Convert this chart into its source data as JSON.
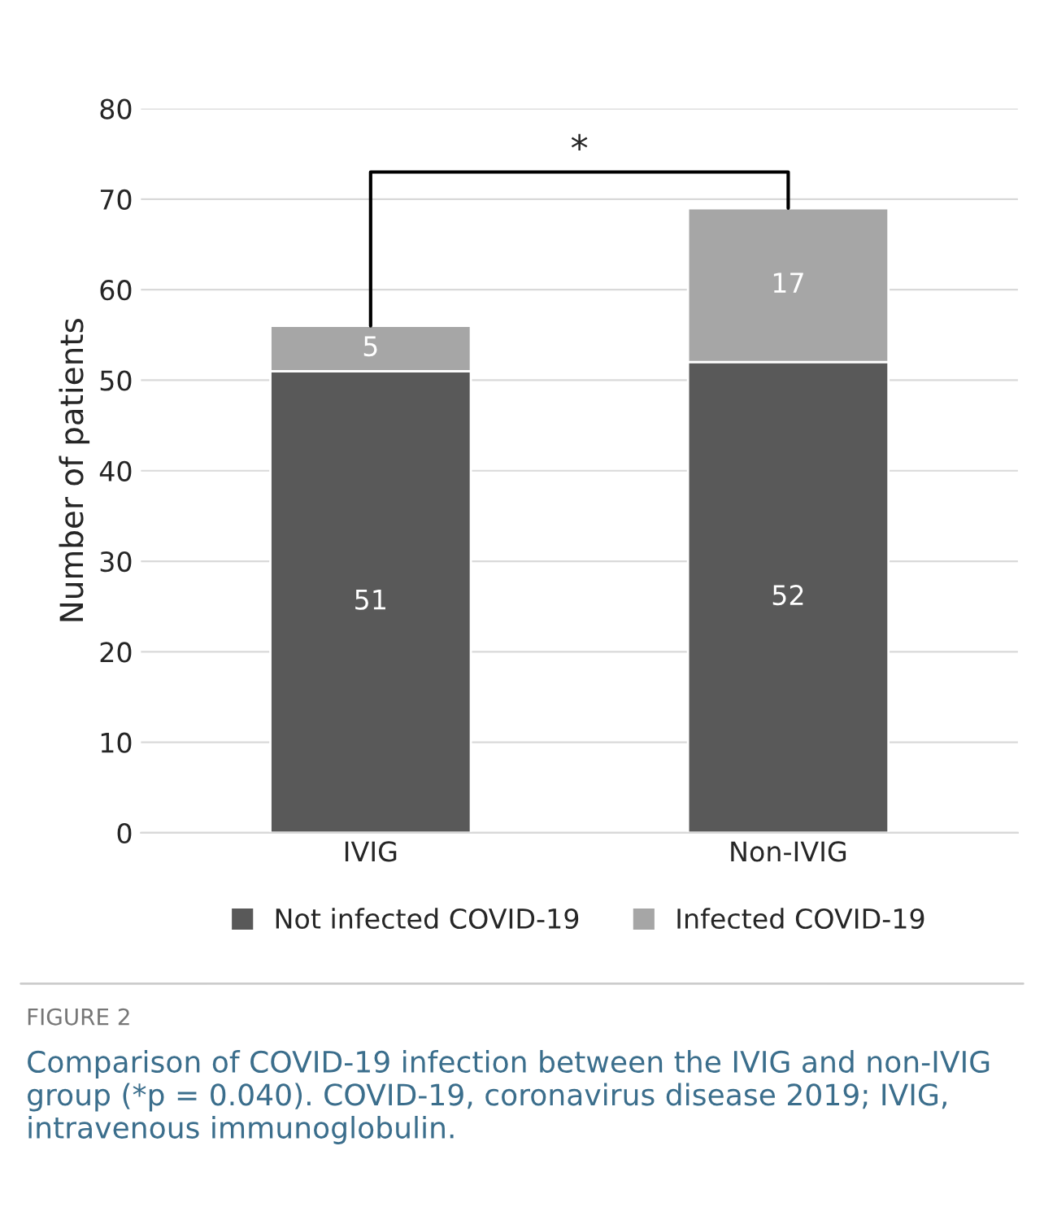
{
  "chart_data": {
    "type": "bar",
    "stacked": true,
    "categories": [
      "IVIG",
      "Non-IVIG"
    ],
    "series": [
      {
        "name": "Not infected COVID-19",
        "color": "#595959",
        "values": [
          51,
          52
        ]
      },
      {
        "name": "Infected COVID-19",
        "color": "#a6a6a6",
        "values": [
          5,
          17
        ]
      }
    ],
    "ylabel": "Number of patients",
    "ylim": [
      0,
      80
    ],
    "yticks": [
      0,
      10,
      20,
      30,
      40,
      50,
      60,
      70,
      80
    ],
    "grid": "y",
    "legend": "bottom",
    "data_labels": true,
    "annotations": [
      "*",
      "FIGURE 2",
      "Comparison of COVID-19 infection between the IVIG and non-IVIG group (*p = 0.040). COVID-19, coronavirus disease 2019; IVIG, intravenous immunoglobulin."
    ]
  }
}
